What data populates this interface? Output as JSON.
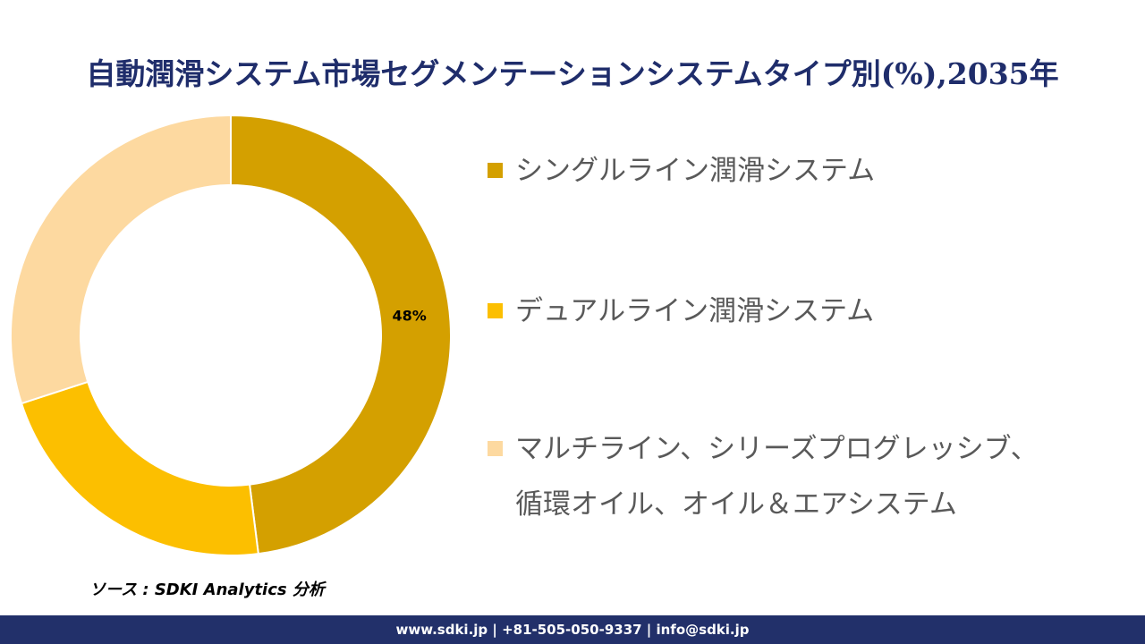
{
  "chart_data": {
    "type": "donut",
    "title": "自動潤滑システム市場セグメンテーションシステムタイプ別(%),2035年",
    "categories": [
      "シングルライン潤滑システム",
      "デュアルライン潤滑システム",
      "マルチライン、シリーズプログレッシブ、循環オイル、オイル＆エアシステム"
    ],
    "values": [
      48,
      22,
      30
    ],
    "value_labels": [
      "48%",
      null,
      null
    ],
    "colors": [
      "#d4a000",
      "#fcbf00",
      "#fdd9a0"
    ],
    "source": "ソース : SDKI Analytics 分析"
  },
  "footer": {
    "text": "www.sdki.jp | +81-505-050-9337 | info@sdki.jp"
  }
}
